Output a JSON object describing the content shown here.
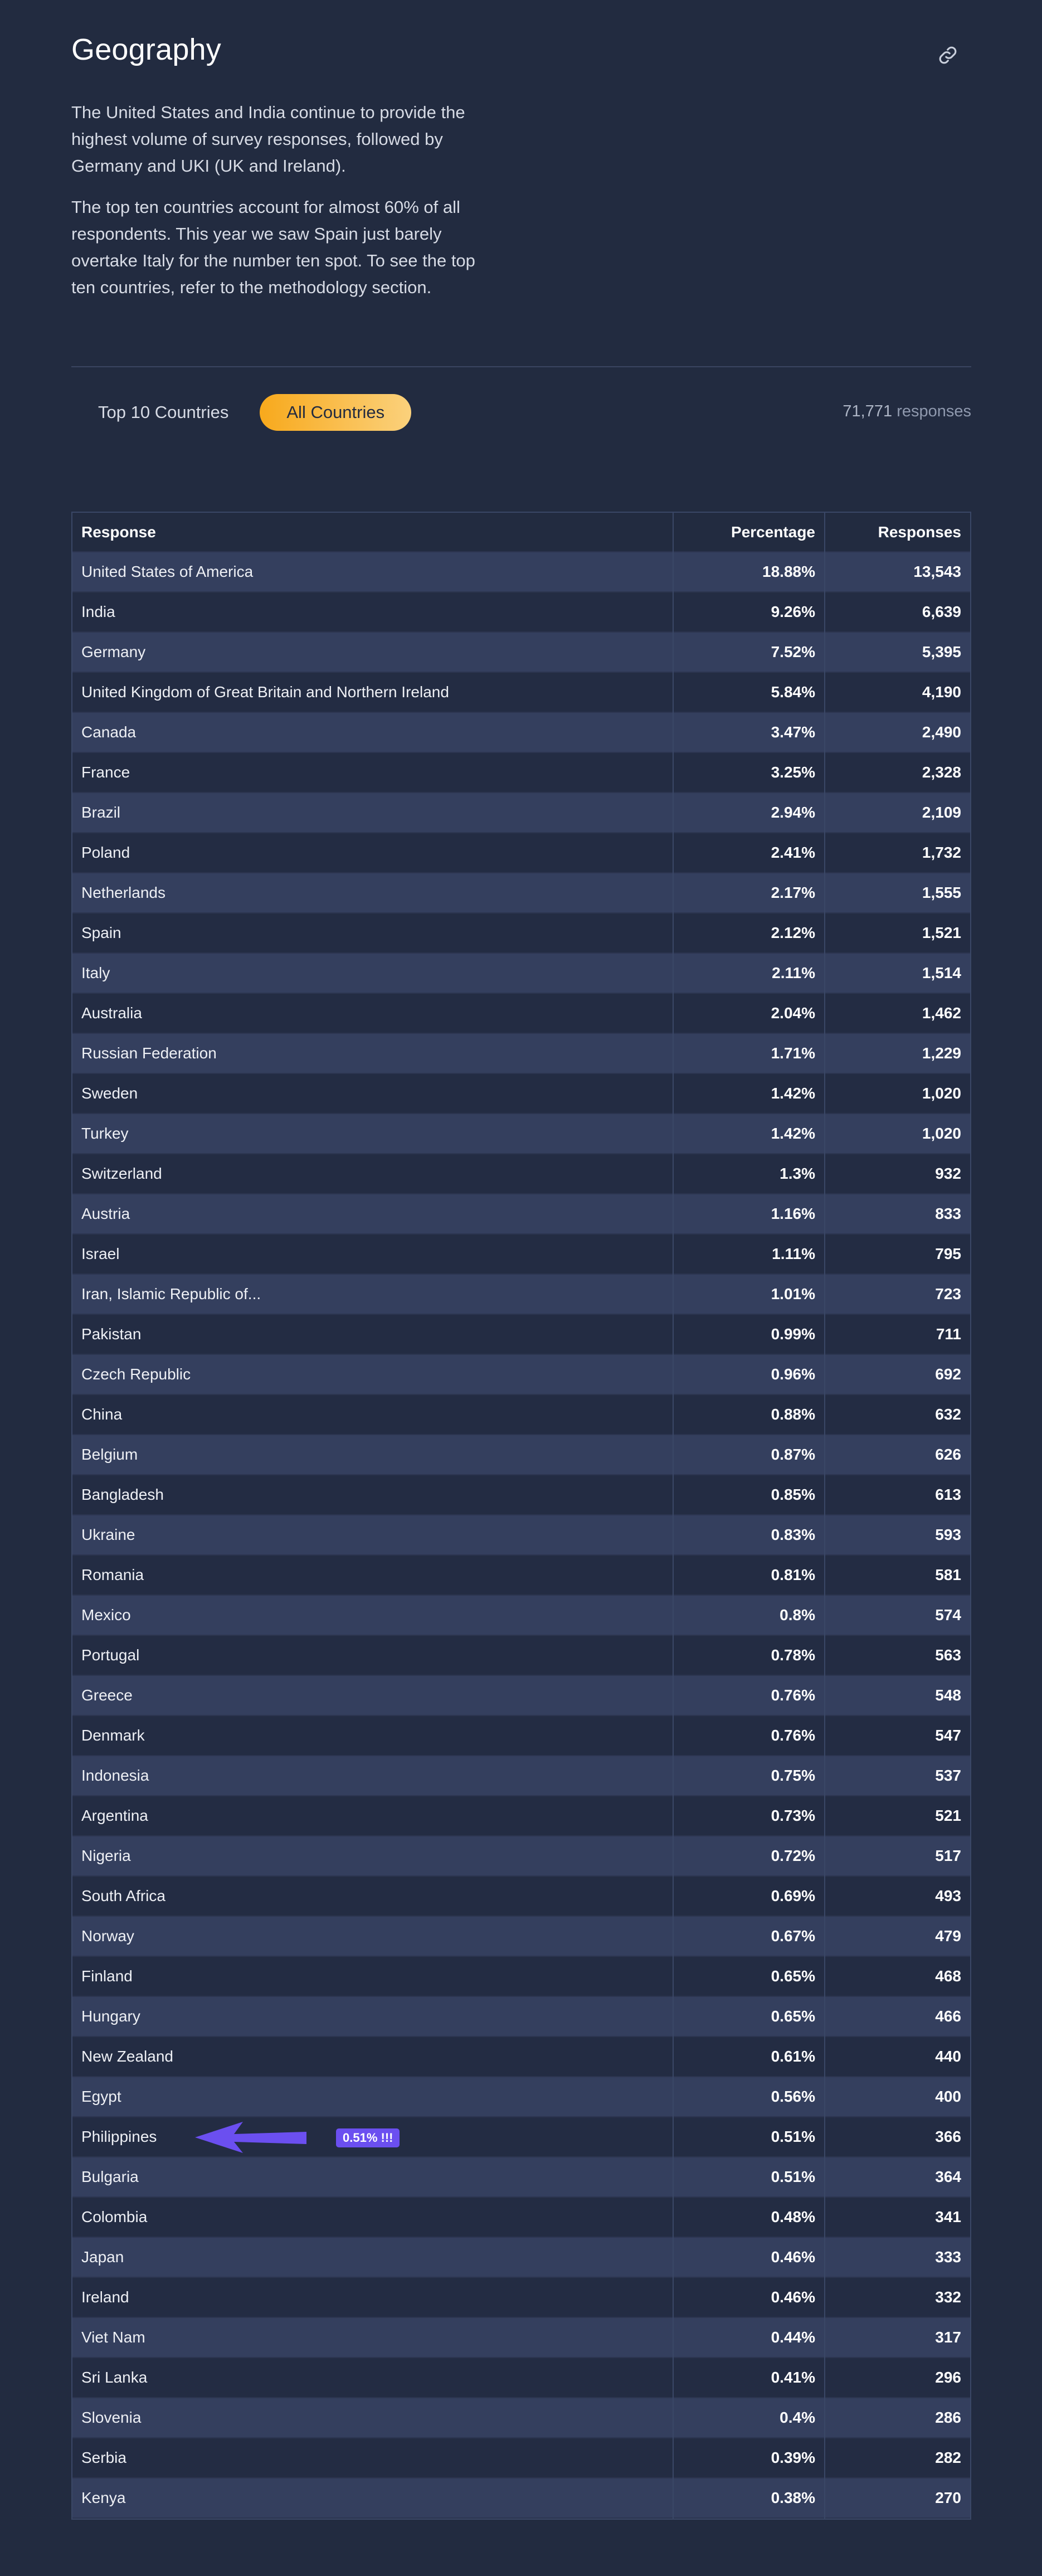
{
  "section": {
    "title": "Geography",
    "intro": [
      "The United States and India continue to provide the highest volume of survey responses, followed by Germany and UKI (UK and Ireland).",
      "The top ten countries account for almost 60% of all respondents. This year we saw Spain just barely overtake Italy for the number ten spot. To see the top ten countries, refer to the methodology section."
    ]
  },
  "icons": {
    "permalink": "link-icon"
  },
  "tabs": [
    {
      "label": "Top 10 Countries",
      "active": false
    },
    {
      "label": "All Countries",
      "active": true
    }
  ],
  "responses_total": {
    "count": "71,771",
    "label": "responses"
  },
  "table": {
    "headers": [
      "Response",
      "Percentage",
      "Responses"
    ],
    "rows": [
      [
        "United States of America",
        "18.88%",
        "13,543"
      ],
      [
        "India",
        "9.26%",
        "6,639"
      ],
      [
        "Germany",
        "7.52%",
        "5,395"
      ],
      [
        "United Kingdom of Great Britain and Northern Ireland",
        "5.84%",
        "4,190"
      ],
      [
        "Canada",
        "3.47%",
        "2,490"
      ],
      [
        "France",
        "3.25%",
        "2,328"
      ],
      [
        "Brazil",
        "2.94%",
        "2,109"
      ],
      [
        "Poland",
        "2.41%",
        "1,732"
      ],
      [
        "Netherlands",
        "2.17%",
        "1,555"
      ],
      [
        "Spain",
        "2.12%",
        "1,521"
      ],
      [
        "Italy",
        "2.11%",
        "1,514"
      ],
      [
        "Australia",
        "2.04%",
        "1,462"
      ],
      [
        "Russian Federation",
        "1.71%",
        "1,229"
      ],
      [
        "Sweden",
        "1.42%",
        "1,020"
      ],
      [
        "Turkey",
        "1.42%",
        "1,020"
      ],
      [
        "Switzerland",
        "1.3%",
        "932"
      ],
      [
        "Austria",
        "1.16%",
        "833"
      ],
      [
        "Israel",
        "1.11%",
        "795"
      ],
      [
        "Iran, Islamic Republic of...",
        "1.01%",
        "723"
      ],
      [
        "Pakistan",
        "0.99%",
        "711"
      ],
      [
        "Czech Republic",
        "0.96%",
        "692"
      ],
      [
        "China",
        "0.88%",
        "632"
      ],
      [
        "Belgium",
        "0.87%",
        "626"
      ],
      [
        "Bangladesh",
        "0.85%",
        "613"
      ],
      [
        "Ukraine",
        "0.83%",
        "593"
      ],
      [
        "Romania",
        "0.81%",
        "581"
      ],
      [
        "Mexico",
        "0.8%",
        "574"
      ],
      [
        "Portugal",
        "0.78%",
        "563"
      ],
      [
        "Greece",
        "0.76%",
        "548"
      ],
      [
        "Denmark",
        "0.76%",
        "547"
      ],
      [
        "Indonesia",
        "0.75%",
        "537"
      ],
      [
        "Argentina",
        "0.73%",
        "521"
      ],
      [
        "Nigeria",
        "0.72%",
        "517"
      ],
      [
        "South Africa",
        "0.69%",
        "493"
      ],
      [
        "Norway",
        "0.67%",
        "479"
      ],
      [
        "Finland",
        "0.65%",
        "468"
      ],
      [
        "Hungary",
        "0.65%",
        "466"
      ],
      [
        "New Zealand",
        "0.61%",
        "440"
      ],
      [
        "Egypt",
        "0.56%",
        "400"
      ],
      [
        "Philippines",
        "0.51%",
        "366"
      ],
      [
        "Bulgaria",
        "0.51%",
        "364"
      ],
      [
        "Colombia",
        "0.48%",
        "341"
      ],
      [
        "Japan",
        "0.46%",
        "333"
      ],
      [
        "Ireland",
        "0.46%",
        "332"
      ],
      [
        "Viet Nam",
        "0.44%",
        "317"
      ],
      [
        "Sri Lanka",
        "0.41%",
        "296"
      ],
      [
        "Slovenia",
        "0.4%",
        "286"
      ],
      [
        "Serbia",
        "0.39%",
        "282"
      ],
      [
        "Kenya",
        "0.38%",
        "270"
      ]
    ]
  },
  "annotation": {
    "row_country": "Philippines",
    "badge_text": "0.51% !!!",
    "arrow_icon": "arrow-left-icon",
    "color": "#6b4ff0"
  },
  "colors": {
    "background": "#222b40",
    "accent_start": "#f8a91c",
    "accent_end": "#fbd17c",
    "annotation": "#6b4ff0"
  }
}
